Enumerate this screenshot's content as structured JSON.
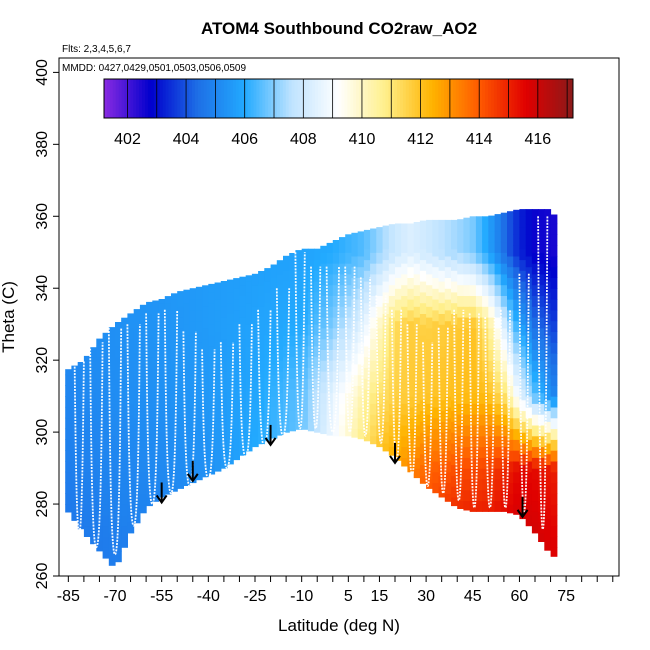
{
  "chart_data": {
    "type": "heatmap",
    "title": "ATOM4 Southbound CO2raw_AO2",
    "notes": {
      "flights": "Flts: 2,3,4,5,6,7",
      "dates": "MMDD: 0427,0429,0501,0503,0506,0509"
    },
    "xlabel": "Latitude (deg N)",
    "ylabel": "Theta (C)",
    "xlim": [
      -88,
      92
    ],
    "ylim": [
      260,
      404
    ],
    "x_ticks": [
      -85,
      -70,
      -55,
      -40,
      -25,
      -10,
      5,
      15,
      30,
      45,
      60,
      75
    ],
    "x_minor_step": 5,
    "y_ticks": [
      260,
      280,
      300,
      320,
      340,
      360,
      380,
      400
    ],
    "colorbar": {
      "min": 401.2,
      "max": 417.2,
      "ticks": [
        402,
        404,
        406,
        408,
        410,
        412,
        414,
        416
      ],
      "colors": [
        "#8a2be2",
        "#0000cd",
        "#1e6fe6",
        "#22aaff",
        "#bfe3ff",
        "#ffffff",
        "#ffef8a",
        "#ffb300",
        "#ff5a00",
        "#e00000",
        "#8b1a1a"
      ]
    },
    "region": {
      "lat": [
        -86,
        -80,
        -75,
        -70,
        -65,
        -60,
        -55,
        -50,
        -45,
        -40,
        -35,
        -30,
        -25,
        -20,
        -15,
        -10,
        -5,
        0,
        5,
        10,
        15,
        20,
        25,
        30,
        35,
        40,
        45,
        50,
        55,
        60,
        65,
        70,
        72
      ],
      "theta_bottom": [
        279,
        272,
        267,
        262,
        272,
        279,
        282,
        284,
        286,
        288,
        290,
        293,
        296,
        298,
        300,
        301,
        300,
        299,
        299,
        298,
        296,
        293,
        289,
        285,
        282,
        279,
        278,
        278,
        278,
        277,
        272,
        266,
        265
      ],
      "theta_top": [
        317,
        320,
        326,
        330,
        333,
        336,
        337,
        339,
        340,
        341,
        342,
        343,
        344,
        346,
        349,
        351,
        351,
        353,
        355,
        356,
        357,
        358,
        358,
        359,
        359,
        359,
        360,
        360,
        361,
        362,
        362,
        362,
        359
      ]
    },
    "co2_field": {
      "theta_levels": [
        270,
        290,
        310,
        330,
        350
      ],
      "lat": [
        -86,
        -70,
        -55,
        -40,
        -25,
        -10,
        0,
        10,
        15,
        20,
        25,
        30,
        35,
        40,
        45,
        50,
        55,
        60,
        65,
        72
      ],
      "values": [
        [
          404.6,
          404.8,
          404.9,
          405.2,
          405.8,
          406.6,
          409.2,
          411.8,
          412.6,
          413.2,
          413.9,
          414.6,
          415.0,
          415.3,
          415.5,
          415.6,
          415.8,
          416.0,
          415.9,
          415.6
        ],
        [
          404.8,
          405.0,
          405.1,
          405.3,
          406.0,
          406.8,
          409.0,
          411.4,
          412.2,
          412.7,
          413.2,
          413.8,
          414.0,
          414.2,
          414.3,
          414.4,
          414.9,
          415.5,
          415.4,
          415.0
        ],
        [
          405.0,
          405.2,
          405.3,
          405.5,
          405.9,
          406.6,
          408.6,
          410.4,
          411.2,
          411.6,
          411.8,
          411.9,
          412.0,
          412.1,
          412.2,
          412.2,
          411.2,
          408.6,
          406.6,
          404.8
        ],
        [
          405.2,
          405.3,
          405.4,
          405.6,
          405.8,
          406.0,
          406.9,
          408.5,
          410.0,
          411.3,
          411.7,
          411.6,
          411.7,
          411.8,
          411.9,
          410.8,
          408.2,
          405.8,
          404.4,
          403.6
        ],
        [
          405.3,
          405.4,
          405.5,
          405.6,
          405.7,
          405.8,
          406.0,
          406.5,
          407.2,
          407.9,
          408.3,
          408.0,
          407.6,
          407.3,
          406.9,
          405.8,
          404.4,
          403.3,
          402.7,
          402.5
        ]
      ]
    },
    "arrows": [
      {
        "lat": -55,
        "theta": 286
      },
      {
        "lat": -45,
        "theta": 292
      },
      {
        "lat": -20,
        "theta": 302
      },
      {
        "lat": 20,
        "theta": 297
      },
      {
        "lat": 61,
        "theta": 282
      }
    ],
    "profiles": [
      {
        "lat0": -83,
        "lat1": -80,
        "bottom": 272,
        "top": 320
      },
      {
        "lat0": -78,
        "lat1": -74,
        "bottom": 268,
        "top": 325
      },
      {
        "lat0": -72,
        "lat1": -68,
        "bottom": 266,
        "top": 329
      },
      {
        "lat0": -66,
        "lat1": -62,
        "bottom": 274,
        "top": 330
      },
      {
        "lat0": -60,
        "lat1": -56,
        "bottom": 280,
        "top": 333
      },
      {
        "lat0": -54,
        "lat1": -50,
        "bottom": 283,
        "top": 334
      },
      {
        "lat0": -48,
        "lat1": -44,
        "bottom": 285,
        "top": 328
      },
      {
        "lat0": -42,
        "lat1": -38,
        "bottom": 287,
        "top": 323
      },
      {
        "lat0": -36,
        "lat1": -32,
        "bottom": 290,
        "top": 325
      },
      {
        "lat0": -30,
        "lat1": -26,
        "bottom": 293,
        "top": 330
      },
      {
        "lat0": -24,
        "lat1": -20,
        "bottom": 296,
        "top": 334
      },
      {
        "lat0": -18,
        "lat1": -14,
        "bottom": 299,
        "top": 340
      },
      {
        "lat0": -12,
        "lat1": -9,
        "bottom": 301,
        "top": 350
      },
      {
        "lat0": -7,
        "lat1": -4,
        "bottom": 301,
        "top": 346
      },
      {
        "lat0": -2,
        "lat1": 2,
        "bottom": 300,
        "top": 346
      },
      {
        "lat0": 4,
        "lat1": 7,
        "bottom": 300,
        "top": 346
      },
      {
        "lat0": 9,
        "lat1": 12,
        "bottom": 299,
        "top": 343
      },
      {
        "lat0": 14,
        "lat1": 17,
        "bottom": 297,
        "top": 338
      },
      {
        "lat0": 19,
        "lat1": 22,
        "bottom": 292,
        "top": 334
      },
      {
        "lat0": 24,
        "lat1": 27,
        "bottom": 288,
        "top": 330
      },
      {
        "lat0": 29,
        "lat1": 32,
        "bottom": 285,
        "top": 325
      },
      {
        "lat0": 34,
        "lat1": 37,
        "bottom": 283,
        "top": 329
      },
      {
        "lat0": 39,
        "lat1": 42,
        "bottom": 281,
        "top": 334
      },
      {
        "lat0": 44,
        "lat1": 47,
        "bottom": 279,
        "top": 333
      },
      {
        "lat0": 49,
        "lat1": 52,
        "bottom": 279,
        "top": 332
      },
      {
        "lat0": 54,
        "lat1": 57,
        "bottom": 279,
        "top": 334
      },
      {
        "lat0": 60,
        "lat1": 63,
        "bottom": 278,
        "top": 344
      },
      {
        "lat0": 66,
        "lat1": 69,
        "bottom": 273,
        "top": 360
      }
    ]
  }
}
